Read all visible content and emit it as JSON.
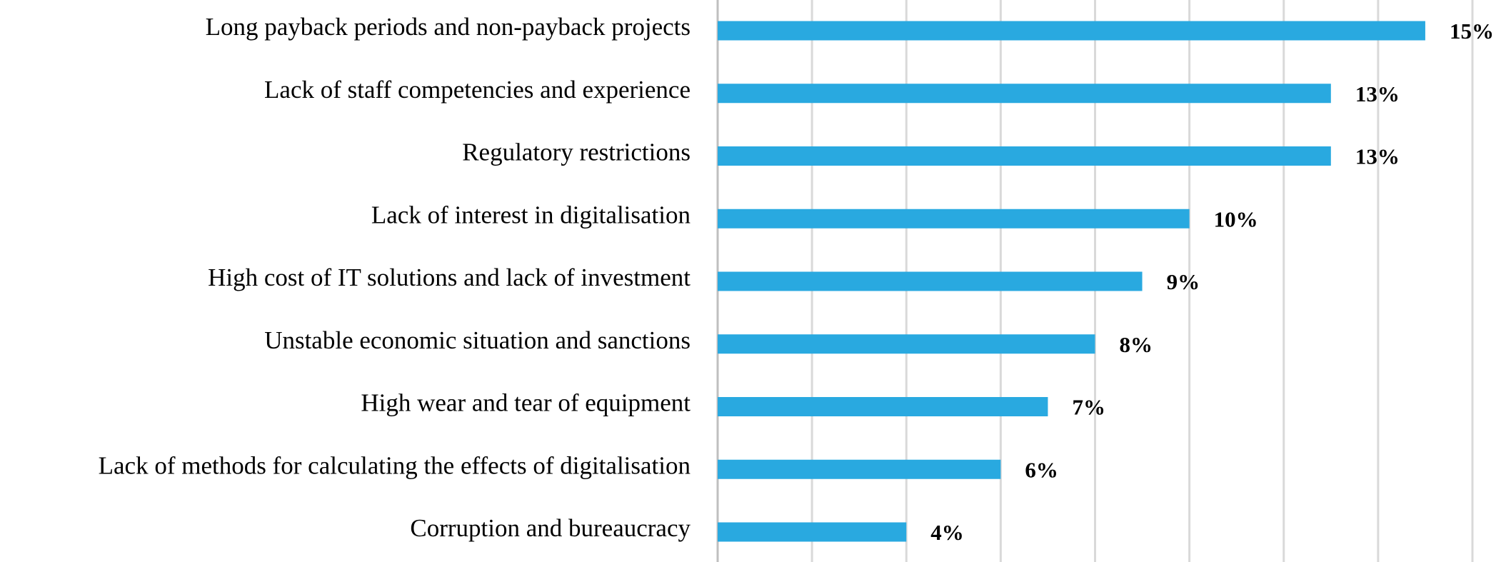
{
  "chart_data": {
    "type": "hbar",
    "categories": [
      "Long payback periods and non-payback projects",
      "Lack of staff competencies and experience",
      "Regulatory restrictions",
      "Lack of interest in digitalisation",
      "High cost of IT solutions and lack of investment",
      "Unstable economic situation and sanctions",
      "High wear and tear of equipment",
      "Lack of methods for calculating the effects of digitalisation",
      "Corruption and bureaucracy"
    ],
    "values": [
      15,
      13,
      13,
      10,
      9,
      8,
      7,
      6,
      4
    ],
    "value_labels": [
      "15%",
      "13%",
      "13%",
      "10%",
      "9%",
      "8%",
      "7%",
      "6%",
      "4%"
    ],
    "color": "#29a9e0",
    "xlim": [
      0,
      16
    ],
    "xticks": [
      0,
      2,
      4,
      6,
      8,
      10,
      12,
      14,
      16
    ],
    "grid": true
  }
}
